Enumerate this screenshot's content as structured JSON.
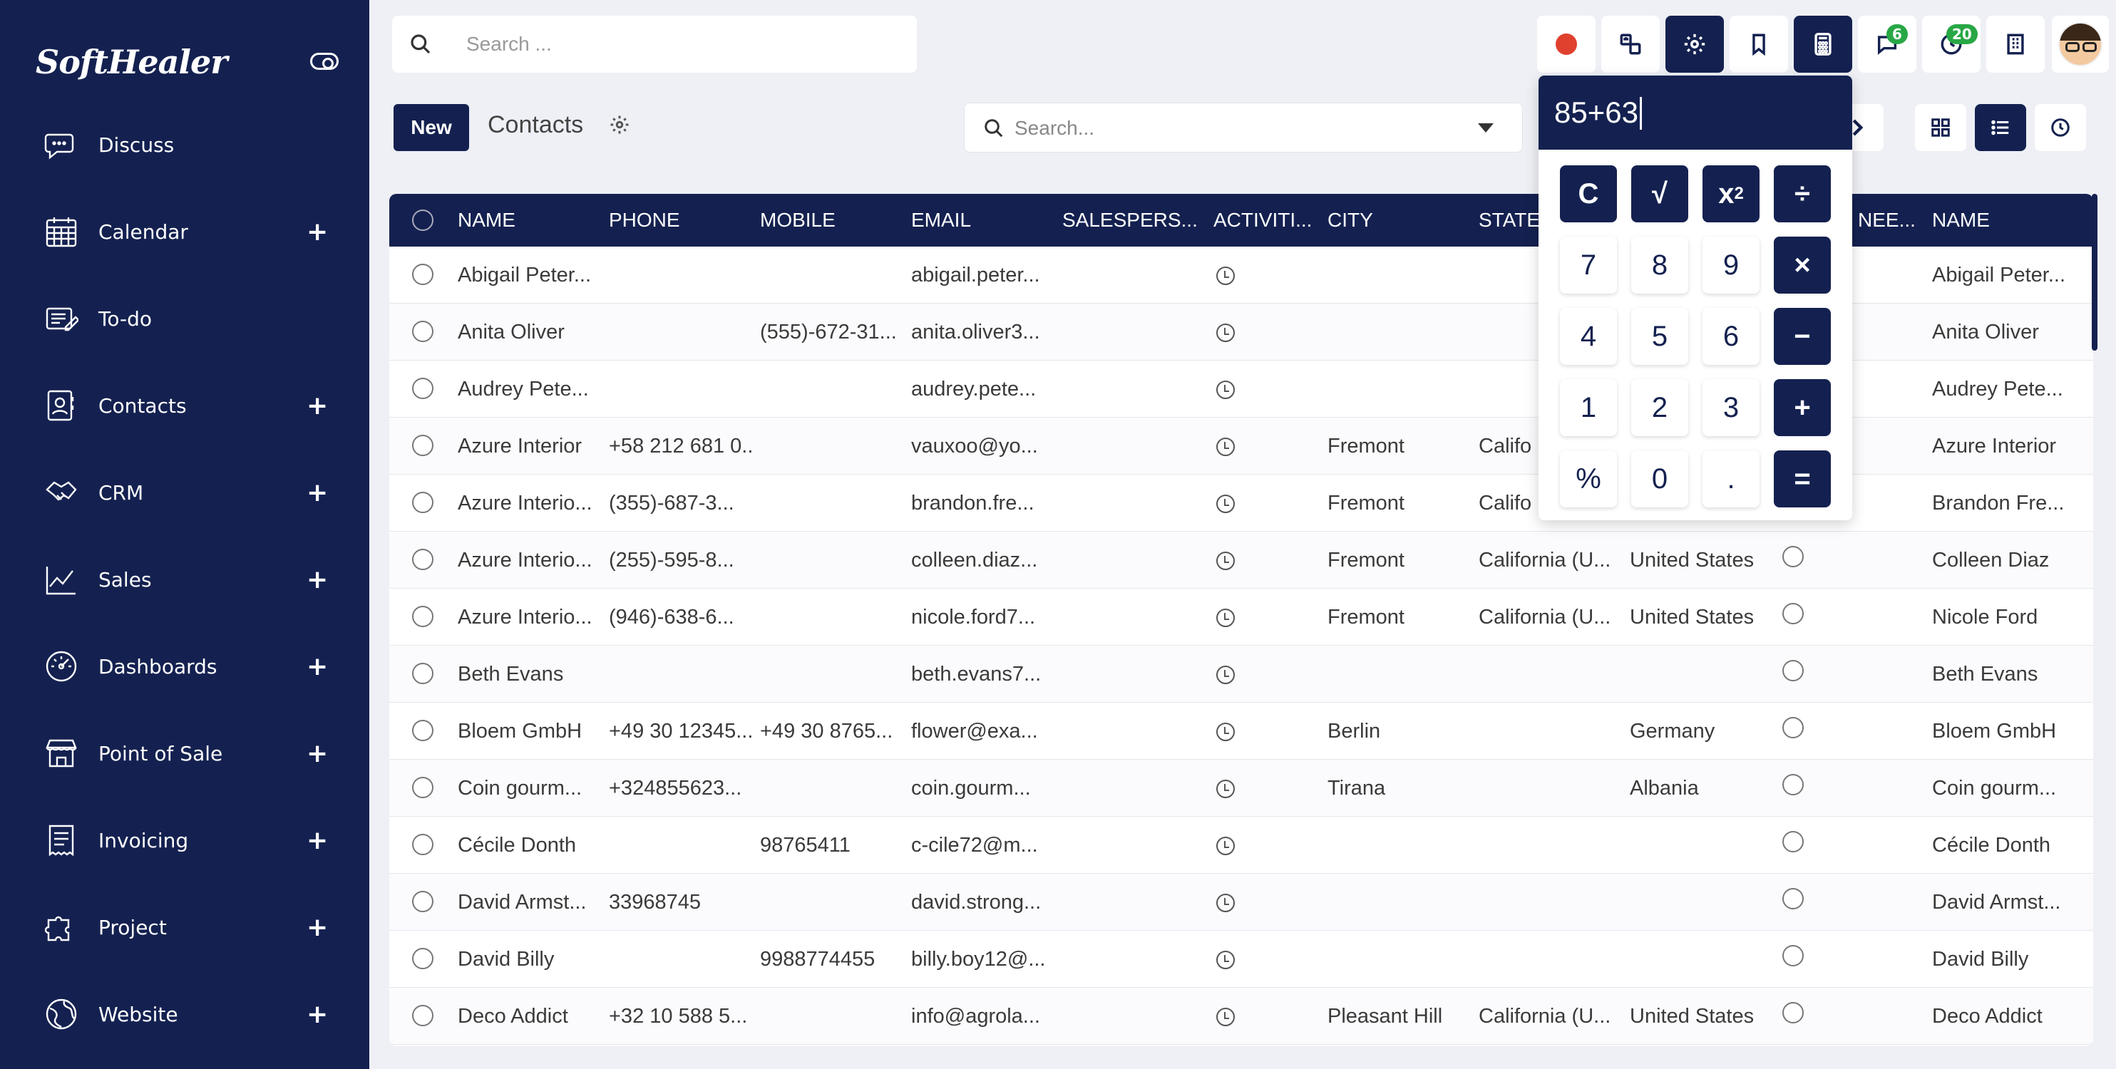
{
  "sidebar": {
    "logo": "SoftHealer",
    "items": [
      {
        "label": "Discuss",
        "icon": "chat-icon",
        "plus": ""
      },
      {
        "label": "Calendar",
        "icon": "calendar-icon",
        "plus": "+"
      },
      {
        "label": "To-do",
        "icon": "todo-icon",
        "plus": ""
      },
      {
        "label": "Contacts",
        "icon": "contacts-icon",
        "plus": "+"
      },
      {
        "label": "CRM",
        "icon": "handshake-icon",
        "plus": "+"
      },
      {
        "label": "Sales",
        "icon": "chart-icon",
        "plus": "+"
      },
      {
        "label": "Dashboards",
        "icon": "dashboard-icon",
        "plus": "+"
      },
      {
        "label": "Point of Sale",
        "icon": "store-icon",
        "plus": "+"
      },
      {
        "label": "Invoicing",
        "icon": "receipt-icon",
        "plus": "+"
      },
      {
        "label": "Project",
        "icon": "puzzle-icon",
        "plus": "+"
      },
      {
        "label": "Website",
        "icon": "globe-icon",
        "plus": "+"
      }
    ]
  },
  "topbar": {
    "search_placeholder": "Search ...",
    "badges": {
      "messages": "6",
      "activities": "20"
    }
  },
  "control": {
    "new_label": "New",
    "breadcrumb": "Contacts",
    "search_placeholder": "Search..."
  },
  "calculator": {
    "display": "85+63",
    "keys": [
      [
        "C",
        "√",
        "x2",
        "÷"
      ],
      [
        "7",
        "8",
        "9",
        "×"
      ],
      [
        "4",
        "5",
        "6",
        "−"
      ],
      [
        "1",
        "2",
        "3",
        "+"
      ],
      [
        "%",
        "0",
        ".",
        "="
      ]
    ]
  },
  "table": {
    "columns": [
      "NAME",
      "PHONE",
      "MOBILE",
      "EMAIL",
      "SALESPERS...",
      "ACTIVITI...",
      "CITY",
      "STATE",
      "",
      "NEE...",
      "NAME"
    ],
    "rows": [
      {
        "name": "Abigail Peter...",
        "phone": "",
        "mobile": "",
        "email": "abigail.peter...",
        "city": "",
        "state": "",
        "country": "",
        "name2": "Abigail Peter..."
      },
      {
        "name": "Anita Oliver",
        "phone": "",
        "mobile": "(555)-672-31...",
        "email": "anita.oliver3...",
        "city": "",
        "state": "",
        "country": "",
        "name2": "Anita Oliver"
      },
      {
        "name": "Audrey Pete...",
        "phone": "",
        "mobile": "",
        "email": "audrey.pete...",
        "city": "",
        "state": "",
        "country": "",
        "name2": "Audrey Pete..."
      },
      {
        "name": "Azure Interior",
        "phone": "+58 212 681 0...",
        "mobile": "",
        "email": "vauxoo@yo...",
        "city": "Fremont",
        "state": "Califo",
        "country": "",
        "name2": "Azure Interior"
      },
      {
        "name": "Azure Interio...",
        "phone": "(355)-687-3...",
        "mobile": "",
        "email": "brandon.fre...",
        "city": "Fremont",
        "state": "Califo",
        "country": "",
        "name2": "Brandon Fre..."
      },
      {
        "name": "Azure Interio...",
        "phone": "(255)-595-8...",
        "mobile": "",
        "email": "colleen.diaz...",
        "city": "Fremont",
        "state": "California (U...",
        "country": "United States",
        "name2": "Colleen Diaz"
      },
      {
        "name": "Azure Interio...",
        "phone": "(946)-638-6...",
        "mobile": "",
        "email": "nicole.ford7...",
        "city": "Fremont",
        "state": "California (U...",
        "country": "United States",
        "name2": "Nicole Ford"
      },
      {
        "name": "Beth Evans",
        "phone": "",
        "mobile": "",
        "email": "beth.evans7...",
        "city": "",
        "state": "",
        "country": "",
        "name2": "Beth Evans"
      },
      {
        "name": "Bloem GmbH",
        "phone": "+49 30 12345...",
        "mobile": "+49 30 8765...",
        "email": "flower@exa...",
        "city": "Berlin",
        "state": "",
        "country": "Germany",
        "name2": "Bloem GmbH"
      },
      {
        "name": "Coin gourm...",
        "phone": "+324855623...",
        "mobile": "",
        "email": "coin.gourm...",
        "city": "Tirana",
        "state": "",
        "country": "Albania",
        "name2": "Coin gourm..."
      },
      {
        "name": "Cécile Donth",
        "phone": "",
        "mobile": "98765411",
        "email": "c-cile72@m...",
        "city": "",
        "state": "",
        "country": "",
        "name2": "Cécile Donth"
      },
      {
        "name": "David Armst...",
        "phone": "33968745",
        "mobile": "",
        "email": "david.strong...",
        "city": "",
        "state": "",
        "country": "",
        "name2": "David Armst..."
      },
      {
        "name": "David Billy",
        "phone": "",
        "mobile": "9988774455",
        "email": "billy.boy12@...",
        "city": "",
        "state": "",
        "country": "",
        "name2": "David Billy"
      },
      {
        "name": "Deco Addict",
        "phone": "+32 10 588 5...",
        "mobile": "",
        "email": "info@agrola...",
        "city": "Pleasant Hill",
        "state": "California (U...",
        "country": "United States",
        "name2": "Deco Addict"
      }
    ]
  }
}
